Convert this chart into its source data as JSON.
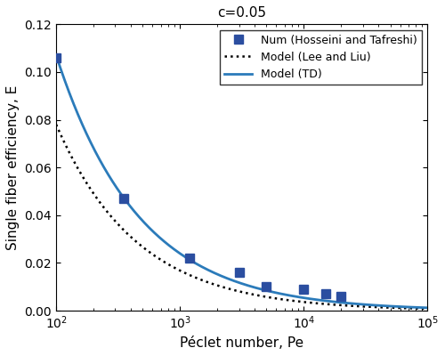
{
  "title": "c=0.05",
  "xlabel": "Péclet number, Pe",
  "ylabel": "Single fiber efficiency, E",
  "xlim": [
    100,
    100000
  ],
  "ylim": [
    0,
    0.12
  ],
  "c": 0.05,
  "num_data": {
    "Pe": [
      100,
      350,
      1200,
      3000,
      5000,
      10000,
      15000,
      20000
    ],
    "E": [
      0.106,
      0.047,
      0.022,
      0.016,
      0.01,
      0.009,
      0.007,
      0.006
    ]
  },
  "td_scale": 2.9,
  "lee_scale": 1.6,
  "td_correction_A": 0.62,
  "line_color_td": "#2b7bba",
  "line_color_lee": "#000000",
  "marker_color": "#2b4ea0",
  "legend_labels": {
    "num": "Num (Hosseini and Tafreshi)",
    "lee": "Model (Lee and Liu)",
    "td": "Model (TD)"
  },
  "legend_order": [
    "num",
    "lee",
    "td"
  ],
  "yticks": [
    0,
    0.02,
    0.04,
    0.06,
    0.08,
    0.1,
    0.12
  ],
  "xticks": [
    100,
    1000,
    10000,
    100000
  ]
}
